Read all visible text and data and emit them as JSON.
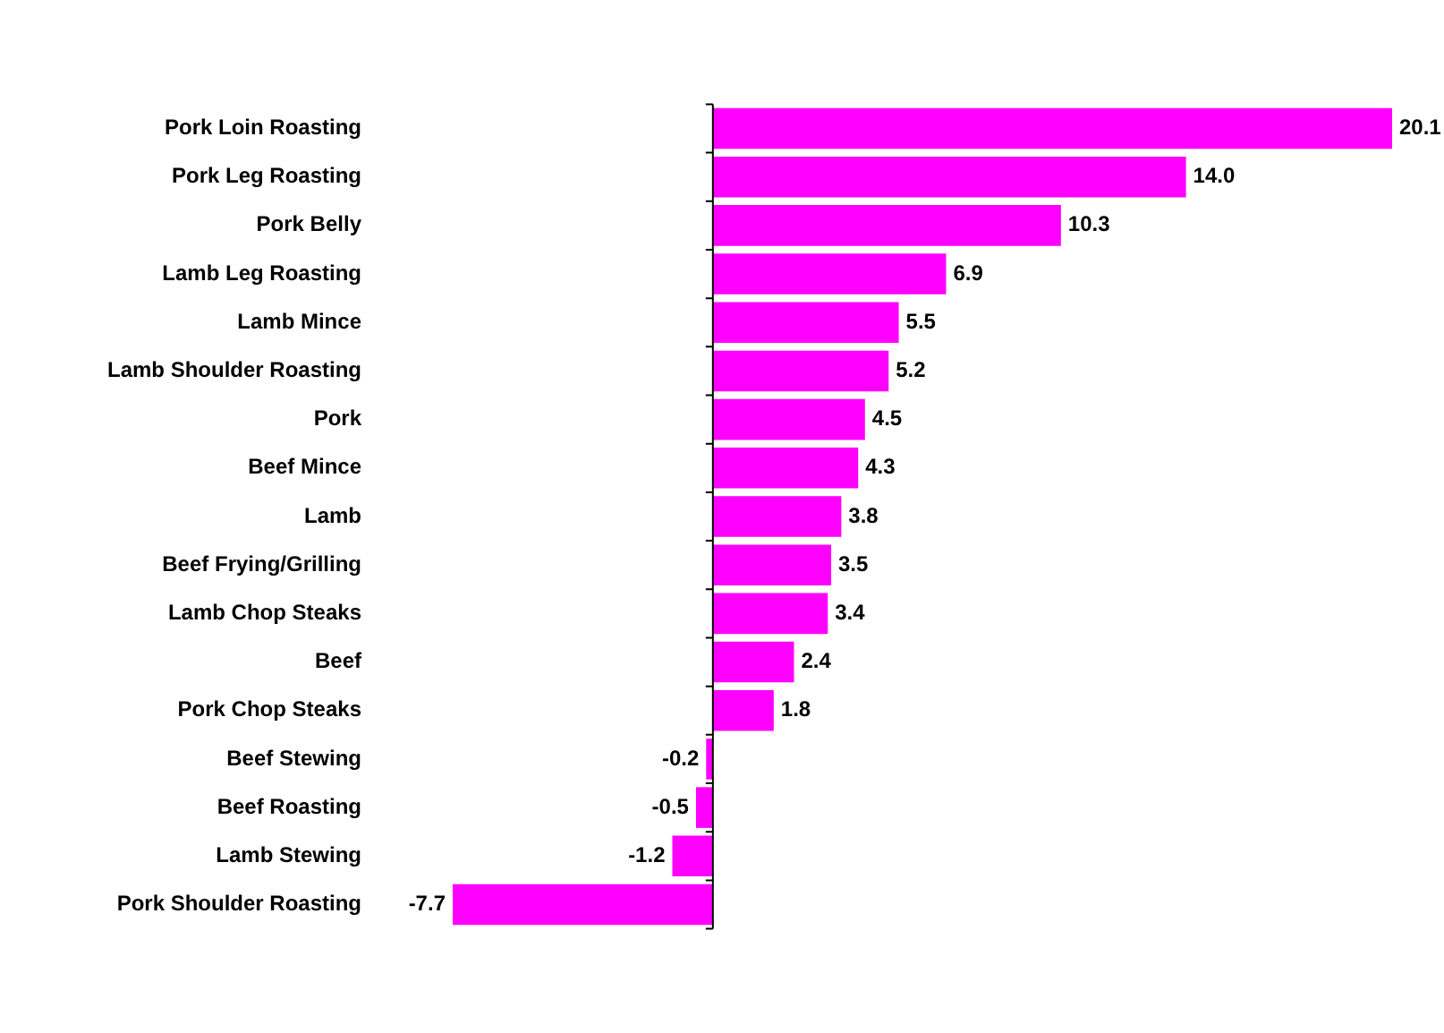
{
  "chart_data": {
    "type": "bar",
    "orientation": "horizontal",
    "categories": [
      "Pork Loin Roasting",
      "Pork Leg Roasting",
      "Pork Belly",
      "Lamb Leg Roasting",
      "Lamb Mince",
      "Lamb Shoulder Roasting",
      "Pork",
      "Beef Mince",
      "Lamb",
      "Beef Frying/Grilling",
      "Lamb Chop Steaks",
      "Beef",
      "Pork Chop Steaks",
      "Beef Stewing",
      "Beef Roasting",
      "Lamb Stewing",
      "Pork Shoulder Roasting"
    ],
    "values": [
      20.1,
      14.0,
      10.3,
      6.9,
      5.5,
      5.2,
      4.5,
      4.3,
      3.8,
      3.5,
      3.4,
      2.4,
      1.8,
      -0.2,
      -0.5,
      -1.2,
      -7.7
    ],
    "value_labels": [
      "20.1",
      "14.0",
      "10.3",
      "6.9",
      "5.5",
      "5.2",
      "4.5",
      "4.3",
      "3.8",
      "3.5",
      "3.4",
      "2.4",
      "1.8",
      "-0.2",
      "-0.5",
      "-1.2",
      "-7.7"
    ],
    "color": "#ff00ff",
    "grid": false,
    "legend": false,
    "tick_labels": "y"
  }
}
